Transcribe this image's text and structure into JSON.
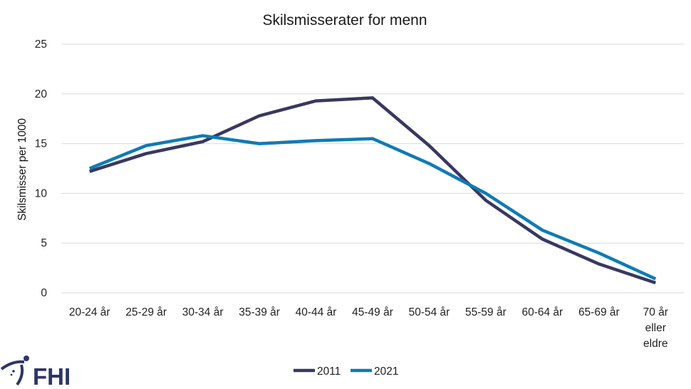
{
  "chart_data": {
    "type": "line",
    "title": "Skilsmisserater for menn",
    "xlabel": "",
    "ylabel": "Skilsmisser per 1000",
    "ylim": [
      0,
      25
    ],
    "yticks": [
      "0",
      "5",
      "10",
      "15",
      "20",
      "25"
    ],
    "categories": [
      "20-24 år",
      "25-29 år",
      "30-34 år",
      "35-39 år",
      "40-44 år",
      "45-49 år",
      "50-54 år",
      "55-59 år",
      "60-64 år",
      "65-69 år",
      "70 år eller eldre"
    ],
    "category_lines": [
      [
        "20-24 år"
      ],
      [
        "25-29 år"
      ],
      [
        "30-34 år"
      ],
      [
        "35-39 år"
      ],
      [
        "40-44 år"
      ],
      [
        "45-49 år"
      ],
      [
        "50-54 år"
      ],
      [
        "55-59 år"
      ],
      [
        "60-64 år"
      ],
      [
        "65-69 år"
      ],
      [
        "70 år",
        "eller",
        "eldre"
      ]
    ],
    "grid": true,
    "legend_position": "bottom",
    "series": [
      {
        "name": "2011",
        "color": "#39385e",
        "values": [
          12.2,
          14.0,
          15.2,
          17.8,
          19.3,
          19.6,
          14.8,
          9.3,
          5.4,
          2.9,
          1.0
        ]
      },
      {
        "name": "2021",
        "color": "#0f7bb5",
        "values": [
          12.5,
          14.8,
          15.8,
          15.0,
          15.3,
          15.5,
          13.0,
          10.0,
          6.3,
          4.0,
          1.4
        ]
      }
    ]
  },
  "logo": {
    "text": "FHI",
    "color": "#2e3566"
  }
}
